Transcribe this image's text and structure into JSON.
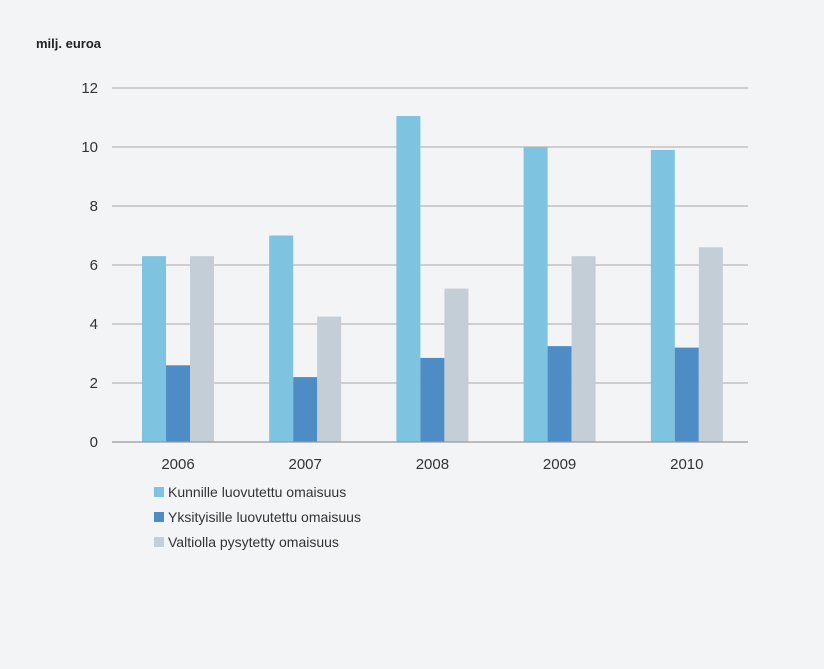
{
  "chart_data": {
    "type": "bar",
    "title": "",
    "ylabel": "milj. euroa",
    "xlabel": "",
    "categories": [
      "2006",
      "2007",
      "2008",
      "2009",
      "2010"
    ],
    "series": [
      {
        "name": "Kunnille luovutettu omaisuus",
        "values": [
          6.3,
          7.0,
          11.05,
          10.0,
          9.9
        ]
      },
      {
        "name": "Yksityisille luovutettu omaisuus",
        "values": [
          2.6,
          2.2,
          2.85,
          3.25,
          3.2
        ]
      },
      {
        "name": "Valtiolla pysytetty omaisuus",
        "values": [
          6.3,
          4.25,
          5.2,
          6.3,
          6.6
        ]
      }
    ],
    "ylim": [
      0,
      12
    ],
    "yticks": [
      0,
      2,
      4,
      6,
      8,
      10,
      12
    ],
    "grid": true,
    "legend_position": "bottom-left",
    "colors": [
      "#7ec3df",
      "#4d8cc4",
      "#c3ced6"
    ]
  }
}
